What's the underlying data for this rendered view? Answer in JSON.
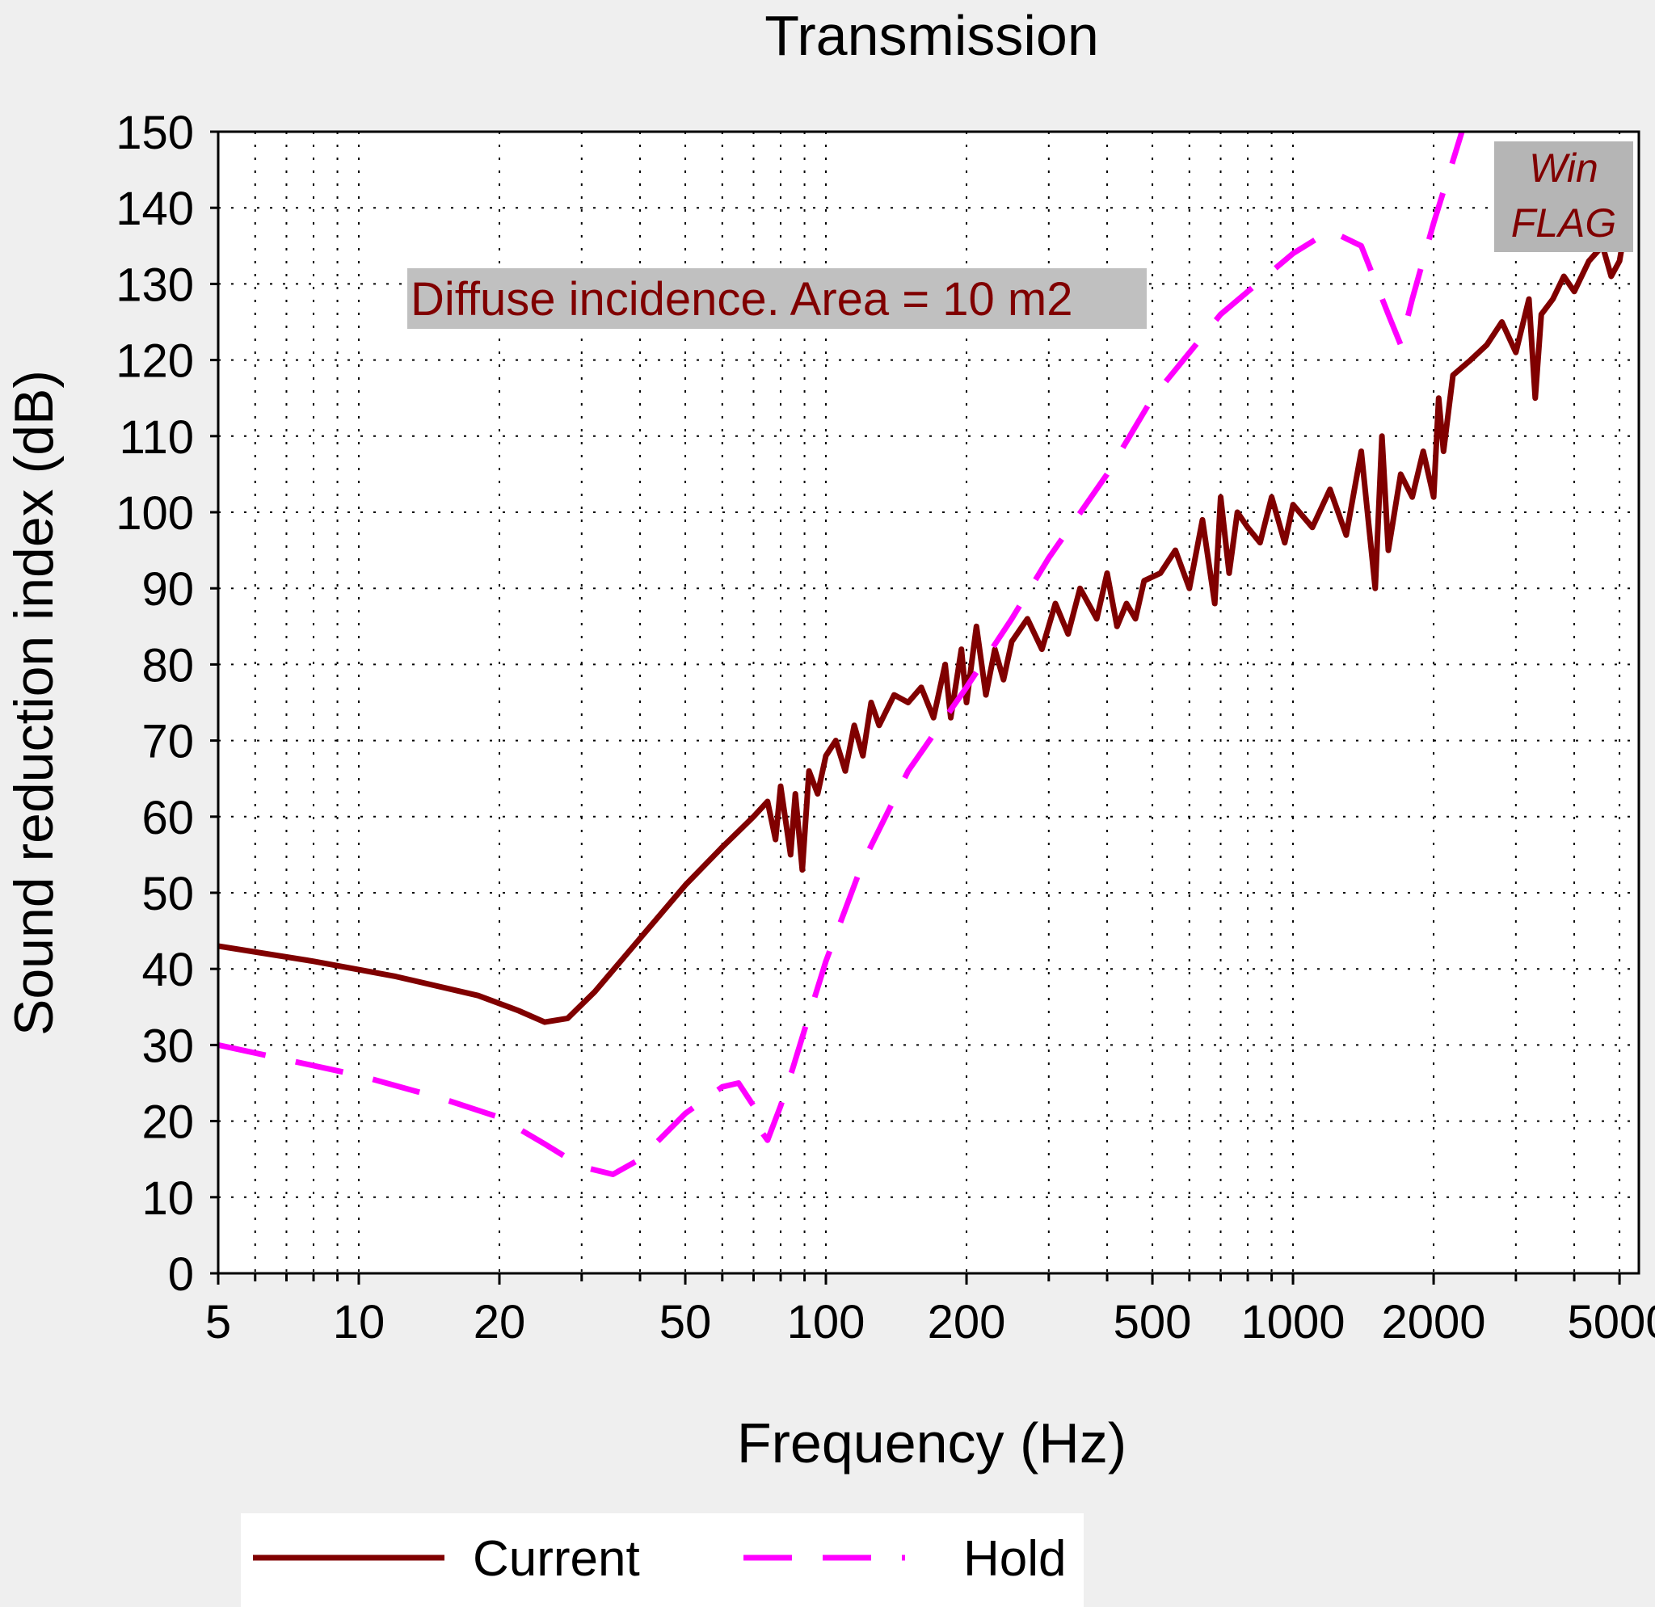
{
  "chart_data": {
    "type": "line",
    "title": "Transmission",
    "xlabel": "Frequency (Hz)",
    "ylabel": "Sound reduction index (dB)",
    "x_scale": "log",
    "xlim": [
      5,
      5500
    ],
    "ylim": [
      0,
      150
    ],
    "x_ticks": [
      5,
      10,
      20,
      50,
      100,
      200,
      500,
      1000,
      2000,
      5000
    ],
    "x_tick_labels": [
      "5",
      "10",
      "20",
      "50",
      "100",
      "200",
      "500",
      "1000",
      "2000",
      "5000"
    ],
    "y_ticks": [
      0,
      10,
      20,
      30,
      40,
      50,
      60,
      70,
      80,
      90,
      100,
      110,
      120,
      130,
      140,
      150
    ],
    "grid": true,
    "legend_position": "bottom-left",
    "annotations": [
      {
        "text": "Diffuse incidence. Area = 10 m2",
        "position": "upper-left"
      },
      {
        "text": "Win FLAG",
        "lines": [
          "Win",
          "FLAG"
        ],
        "position": "top-right"
      }
    ],
    "series": [
      {
        "name": "Current",
        "color": "#800000",
        "style": "solid",
        "points": [
          [
            5,
            43
          ],
          [
            8,
            41
          ],
          [
            12,
            39
          ],
          [
            18,
            36.5
          ],
          [
            22,
            34.5
          ],
          [
            25,
            33
          ],
          [
            28,
            33.5
          ],
          [
            32,
            37
          ],
          [
            40,
            44
          ],
          [
            50,
            51
          ],
          [
            60,
            56
          ],
          [
            70,
            60
          ],
          [
            75,
            62
          ],
          [
            78,
            57
          ],
          [
            80,
            64
          ],
          [
            84,
            55
          ],
          [
            86,
            63
          ],
          [
            89,
            53
          ],
          [
            92,
            66
          ],
          [
            96,
            63
          ],
          [
            100,
            68
          ],
          [
            105,
            70
          ],
          [
            110,
            66
          ],
          [
            115,
            72
          ],
          [
            120,
            68
          ],
          [
            125,
            75
          ],
          [
            130,
            72
          ],
          [
            140,
            76
          ],
          [
            150,
            75
          ],
          [
            160,
            77
          ],
          [
            170,
            73
          ],
          [
            180,
            80
          ],
          [
            185,
            73
          ],
          [
            195,
            82
          ],
          [
            200,
            75
          ],
          [
            210,
            85
          ],
          [
            220,
            76
          ],
          [
            230,
            82
          ],
          [
            240,
            78
          ],
          [
            250,
            83
          ],
          [
            270,
            86
          ],
          [
            290,
            82
          ],
          [
            310,
            88
          ],
          [
            330,
            84
          ],
          [
            350,
            90
          ],
          [
            380,
            86
          ],
          [
            400,
            92
          ],
          [
            420,
            85
          ],
          [
            440,
            88
          ],
          [
            460,
            86
          ],
          [
            480,
            91
          ],
          [
            520,
            92
          ],
          [
            560,
            95
          ],
          [
            600,
            90
          ],
          [
            640,
            99
          ],
          [
            680,
            88
          ],
          [
            700,
            102
          ],
          [
            730,
            92
          ],
          [
            760,
            100
          ],
          [
            800,
            98
          ],
          [
            850,
            96
          ],
          [
            900,
            102
          ],
          [
            960,
            96
          ],
          [
            1000,
            101
          ],
          [
            1100,
            98
          ],
          [
            1200,
            103
          ],
          [
            1300,
            97
          ],
          [
            1400,
            108
          ],
          [
            1500,
            90
          ],
          [
            1550,
            110
          ],
          [
            1600,
            95
          ],
          [
            1700,
            105
          ],
          [
            1800,
            102
          ],
          [
            1900,
            108
          ],
          [
            2000,
            102
          ],
          [
            2050,
            115
          ],
          [
            2100,
            108
          ],
          [
            2200,
            118
          ],
          [
            2400,
            120
          ],
          [
            2600,
            122
          ],
          [
            2800,
            125
          ],
          [
            3000,
            121
          ],
          [
            3200,
            128
          ],
          [
            3300,
            115
          ],
          [
            3400,
            126
          ],
          [
            3600,
            128
          ],
          [
            3800,
            131
          ],
          [
            4000,
            129
          ],
          [
            4300,
            133
          ],
          [
            4600,
            135
          ],
          [
            4800,
            131
          ],
          [
            5000,
            133
          ],
          [
            5200,
            139
          ]
        ]
      },
      {
        "name": "Hold",
        "color": "#ff00ff",
        "style": "dashed",
        "points": [
          [
            5,
            30
          ],
          [
            10,
            26
          ],
          [
            15,
            23
          ],
          [
            20,
            20.5
          ],
          [
            25,
            17
          ],
          [
            30,
            14
          ],
          [
            35,
            13
          ],
          [
            40,
            15
          ],
          [
            50,
            21
          ],
          [
            60,
            24.5
          ],
          [
            65,
            25
          ],
          [
            70,
            22
          ],
          [
            72,
            19
          ],
          [
            75,
            17.5
          ],
          [
            80,
            22
          ],
          [
            85,
            27
          ],
          [
            90,
            32
          ],
          [
            100,
            41
          ],
          [
            120,
            54
          ],
          [
            150,
            66
          ],
          [
            200,
            77
          ],
          [
            250,
            86
          ],
          [
            300,
            94
          ],
          [
            400,
            105
          ],
          [
            500,
            115
          ],
          [
            700,
            126
          ],
          [
            1000,
            134
          ],
          [
            1200,
            137
          ],
          [
            1400,
            135
          ],
          [
            1600,
            126
          ],
          [
            1700,
            122
          ],
          [
            1800,
            128
          ],
          [
            2000,
            138
          ],
          [
            2300,
            150
          ],
          [
            2400,
            154
          ]
        ]
      }
    ]
  }
}
